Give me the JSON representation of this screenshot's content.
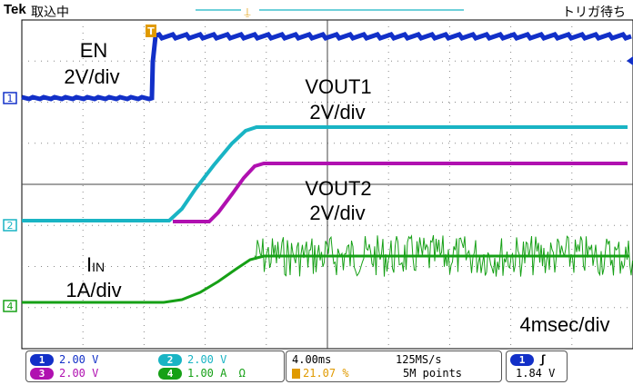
{
  "header": {
    "brand": "Tek",
    "state": "取込中",
    "trigger_status": "トリガ待ち"
  },
  "labels": {
    "en": "EN",
    "en_scale": "2V/div",
    "vout1": "VOUT1",
    "vout1_scale": "2V/div",
    "vout2": "VOUT2",
    "vout2_scale": "2V/div",
    "iin_main": "I",
    "iin_sub": "IN",
    "iin_scale": "1A/div",
    "timebase_label": "4msec/div"
  },
  "markers": {
    "ch1": "1",
    "ch2": "2",
    "ch4": "4",
    "trigger": "T"
  },
  "channels": [
    {
      "id": "1",
      "scale": "2.00 V",
      "color": "#1230c8"
    },
    {
      "id": "2",
      "scale": "2.00 V",
      "color": "#19b4c4"
    },
    {
      "id": "3",
      "scale": "2.00 V",
      "color": "#b010b0"
    },
    {
      "id": "4",
      "scale": "1.00 A",
      "extra": "Ω",
      "color": "#16a016"
    }
  ],
  "timing": {
    "horizontal": "4.00ms",
    "sample_rate": "125MS/s",
    "trigger_pos": "21.07 %",
    "record": "5M points"
  },
  "trigger": {
    "source": "1",
    "slope": "ʃ",
    "level": "1.84 V"
  }
}
